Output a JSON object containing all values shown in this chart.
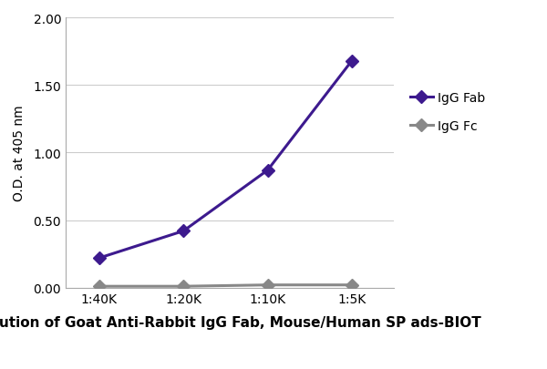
{
  "x_labels": [
    "1:40K",
    "1:20K",
    "1:10K",
    "1:5K"
  ],
  "x_values": [
    1,
    2,
    3,
    4
  ],
  "igg_fab_values": [
    0.22,
    0.42,
    0.87,
    1.68
  ],
  "igg_fc_values": [
    0.01,
    0.01,
    0.02,
    0.02
  ],
  "igg_fab_color": "#3d1a8e",
  "igg_fc_color": "#888888",
  "igg_fab_label": "IgG Fab",
  "igg_fc_label": "IgG Fc",
  "xlabel": "Dilution of Goat Anti-Rabbit IgG Fab, Mouse/Human SP ads-BIOT",
  "ylabel": "O.D. at 405 nm",
  "ylim": [
    0.0,
    2.0
  ],
  "yticks": [
    0.0,
    0.5,
    1.0,
    1.5,
    2.0
  ],
  "marker_style": "D",
  "line_width": 2.2,
  "marker_size": 7,
  "background_color": "#ffffff",
  "grid_color": "#cccccc",
  "xlabel_fontsize": 11,
  "ylabel_fontsize": 10,
  "tick_fontsize": 10,
  "legend_fontsize": 10
}
